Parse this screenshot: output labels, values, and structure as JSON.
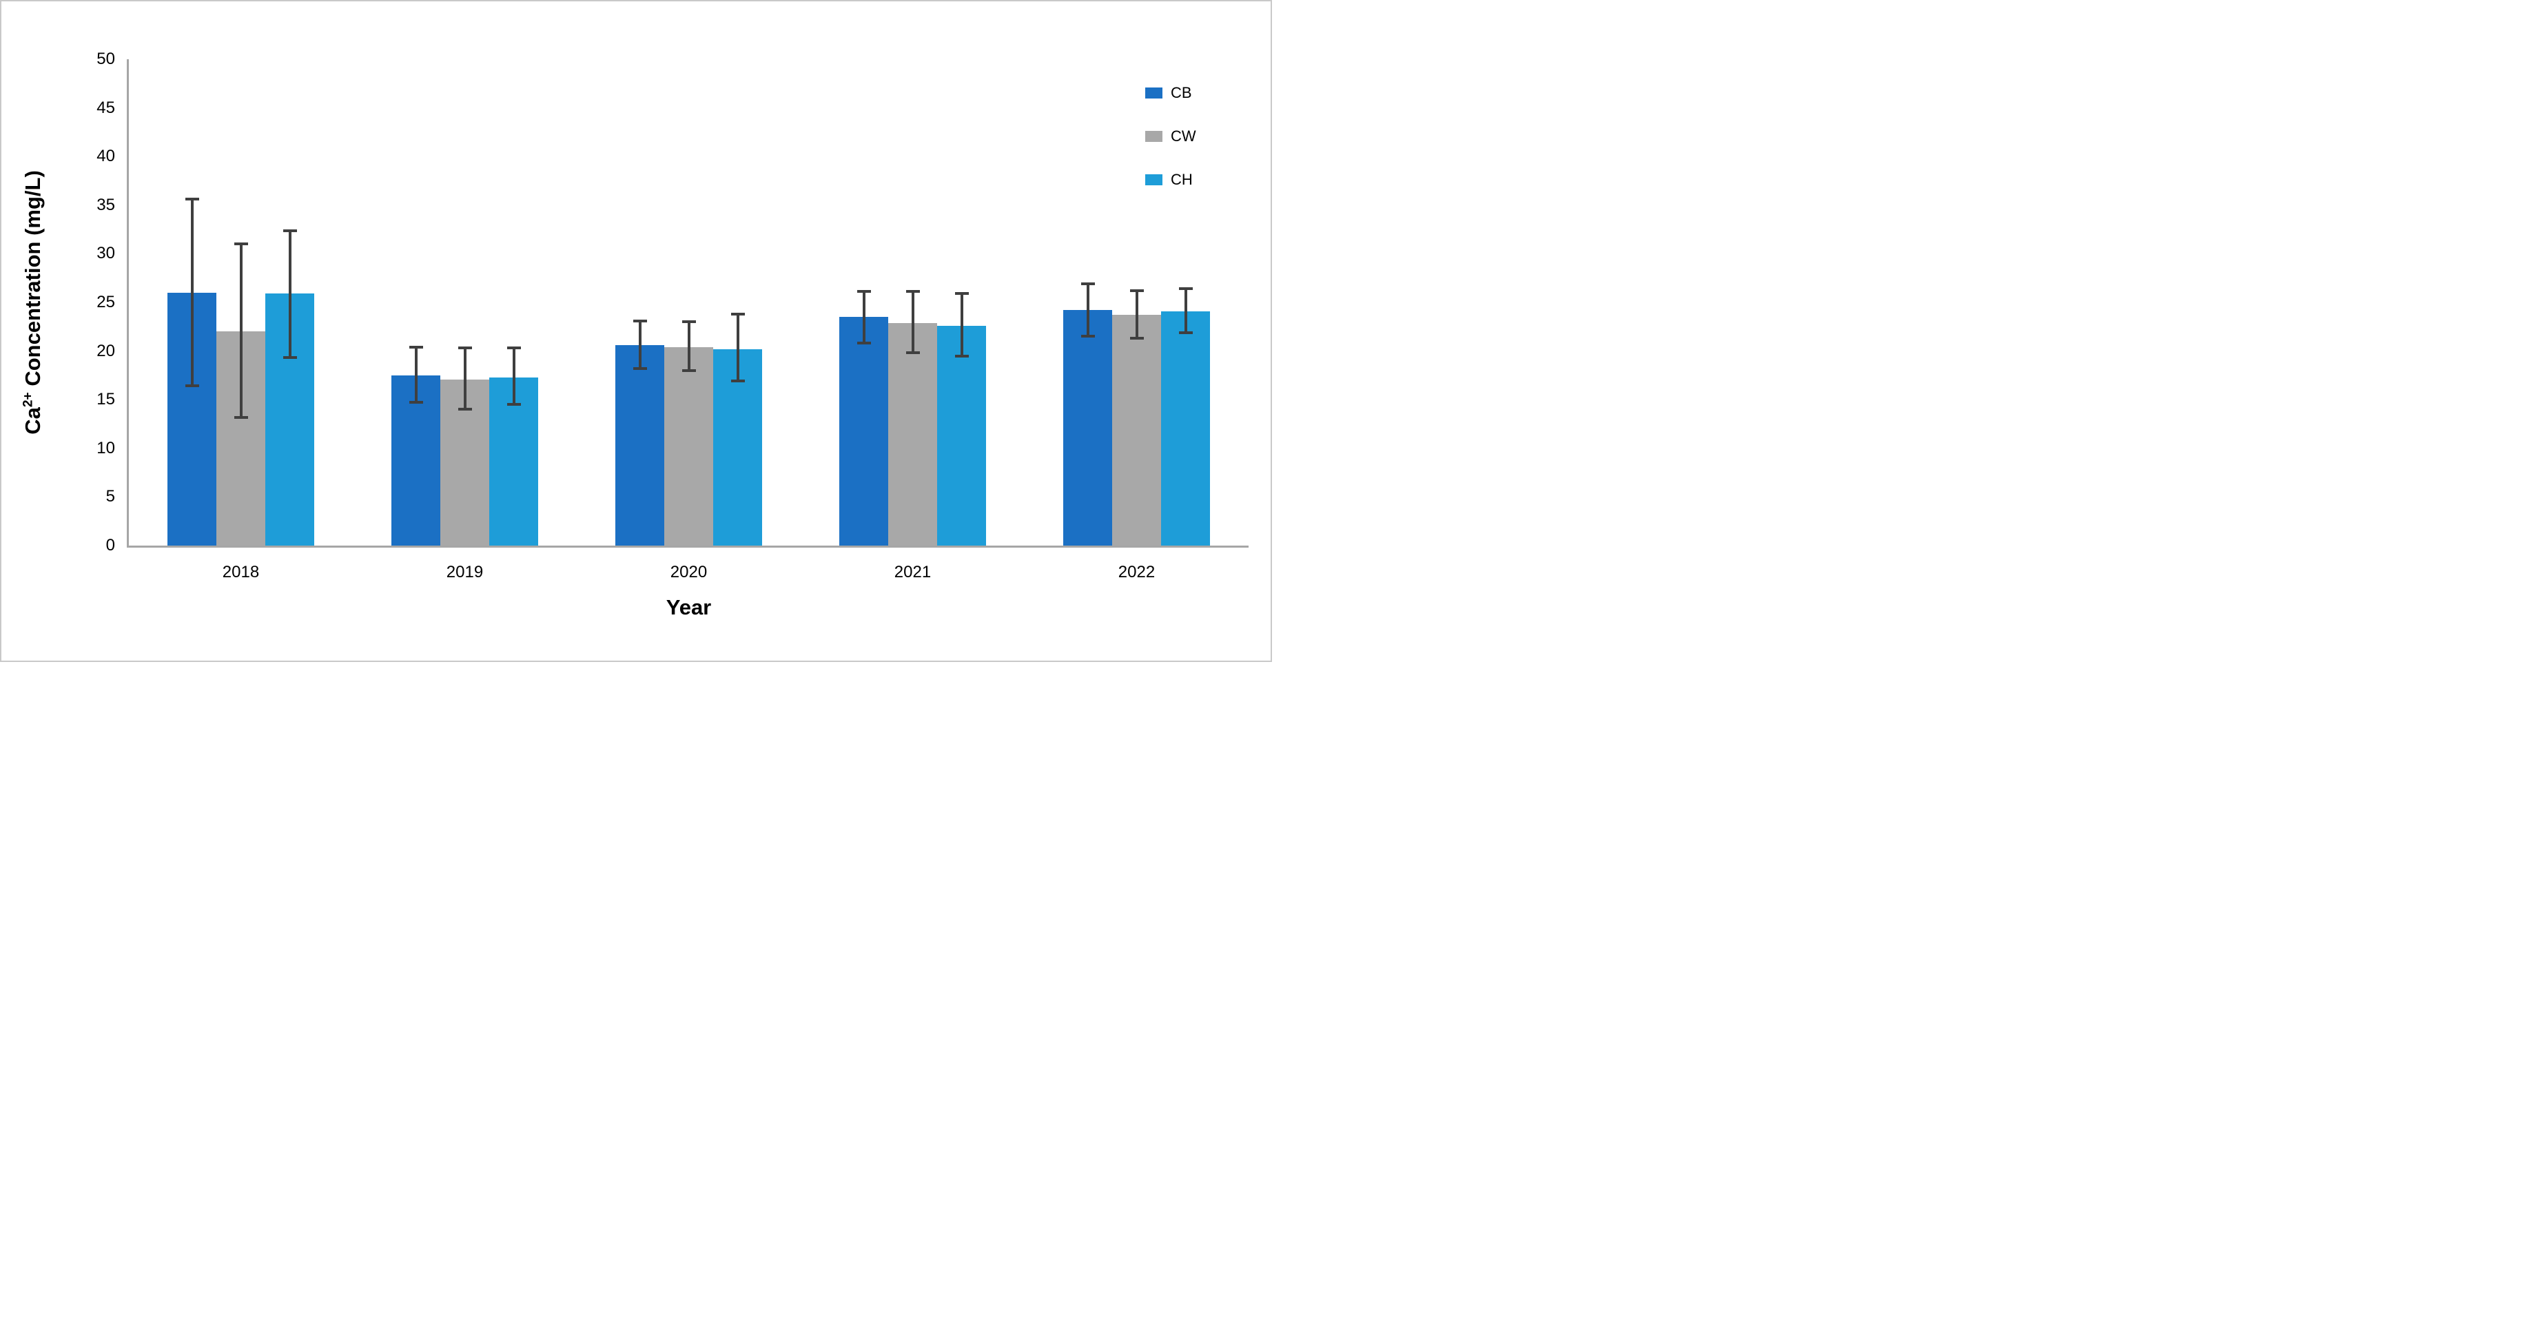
{
  "figure": {
    "background": "#ffffff",
    "border_color": "#c9c9c9"
  },
  "chart_data": {
    "type": "bar",
    "title": "",
    "xlabel": "Year",
    "ylabel": "Ca²⁺ Concentration (mg/L)",
    "ylabel_parts": {
      "base": "Ca",
      "sup": "2+",
      "rest": " Concentration (mg/L)"
    },
    "ylim": [
      0,
      50
    ],
    "yticks": [
      0,
      5,
      10,
      15,
      20,
      25,
      30,
      35,
      40,
      45,
      50
    ],
    "grid": false,
    "legend_position": "top-right",
    "categories": [
      "2018",
      "2019",
      "2020",
      "2021",
      "2022"
    ],
    "series": [
      {
        "name": "CB",
        "color": "#1b70c4",
        "values": [
          26.0,
          17.5,
          20.6,
          23.5,
          24.2
        ],
        "err_lo": [
          16.4,
          14.7,
          18.2,
          20.8,
          21.5
        ],
        "err_hi": [
          35.6,
          20.4,
          23.1,
          26.1,
          26.9
        ]
      },
      {
        "name": "CW",
        "color": "#a8a8a8",
        "values": [
          22.0,
          17.1,
          20.4,
          22.9,
          23.7
        ],
        "err_lo": [
          13.2,
          14.0,
          18.0,
          19.8,
          21.3
        ],
        "err_hi": [
          31.0,
          20.3,
          23.0,
          26.1,
          26.2
        ]
      },
      {
        "name": "CH",
        "color": "#1e9dd8",
        "values": [
          25.9,
          17.3,
          20.2,
          22.6,
          24.1
        ],
        "err_lo": [
          19.3,
          14.5,
          16.9,
          19.5,
          21.9
        ],
        "err_hi": [
          32.4,
          20.3,
          23.8,
          25.9,
          26.4
        ]
      }
    ],
    "error_bar_color": "#3f3f3f",
    "axis_line_color": "#a6a6a6"
  }
}
